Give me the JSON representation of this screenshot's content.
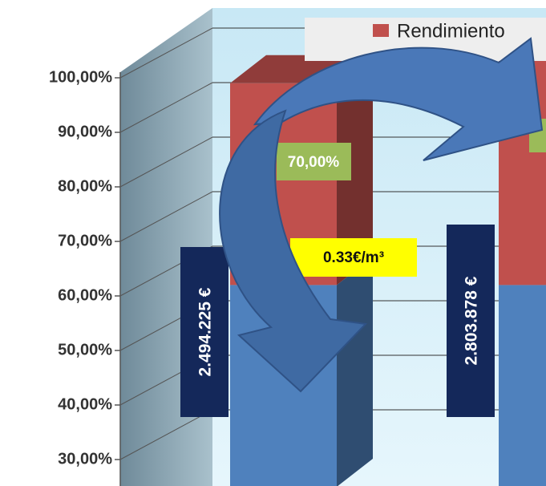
{
  "chart_data": {
    "type": "bar",
    "categories": [
      null,
      null
    ],
    "series": [
      {
        "color": "#4f81bd",
        "values": [
          37,
          37
        ]
      },
      {
        "name": "Rendimiento",
        "color": "#c0504d",
        "values": [
          37,
          42
        ]
      }
    ],
    "ylim": [
      25,
      100
    ],
    "yticks": [
      {
        "value": 30,
        "label": "30,00%"
      },
      {
        "value": 40,
        "label": "40,00%"
      },
      {
        "value": 50,
        "label": "50,00%"
      },
      {
        "value": 60,
        "label": "60,00%"
      },
      {
        "value": 70,
        "label": "70,00%"
      },
      {
        "value": 80,
        "label": "80,00%"
      },
      {
        "value": 90,
        "label": "90,00%"
      },
      {
        "value": 100,
        "label": "100,00%"
      }
    ],
    "grid": true,
    "annotations": [
      "70,00%",
      "2.494.225 €",
      "2.803.878 €",
      "0.33€/m³"
    ]
  }
}
